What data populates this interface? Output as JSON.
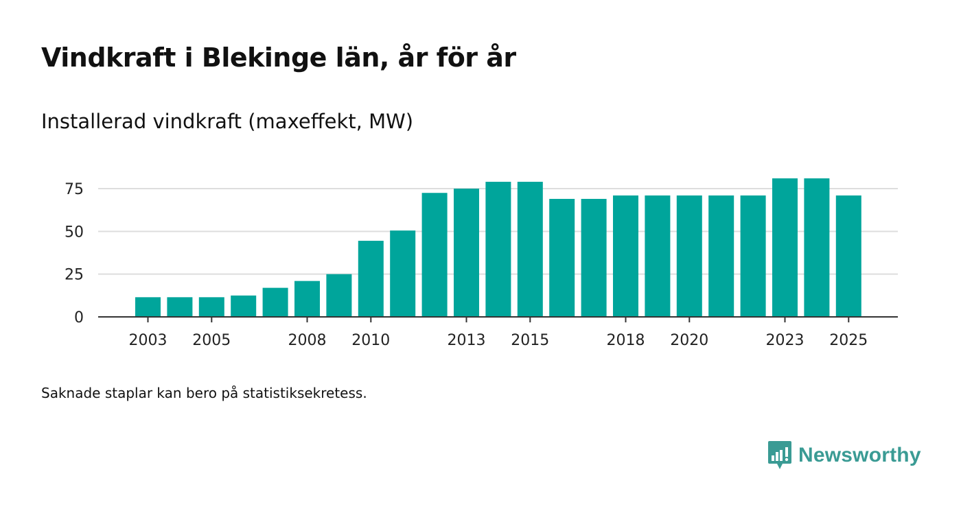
{
  "header": {
    "title": "Vindkraft i Blekinge län, år för år",
    "subtitle": "Installerad vindkraft (maxeffekt, MW)"
  },
  "footer": {
    "note": "Saknade staplar kan bero på statistiksekretess.",
    "brand": "Newsworthy"
  },
  "colors": {
    "bar": "#00a59b",
    "grid": "#dddddd",
    "axis": "#333333",
    "brand": "#3a9b94"
  },
  "chart_data": {
    "type": "bar",
    "title": "Installerad vindkraft (maxeffekt, MW)",
    "xlabel": "",
    "ylabel": "",
    "categories": [
      "2003",
      "2004",
      "2005",
      "2006",
      "2007",
      "2008",
      "2009",
      "2010",
      "2011",
      "2012",
      "2013",
      "2014",
      "2015",
      "2016",
      "2017",
      "2018",
      "2019",
      "2020",
      "2021",
      "2022",
      "2023",
      "2024",
      "2025"
    ],
    "values": [
      11.5,
      11.5,
      11.5,
      12.5,
      17,
      21,
      25,
      44.5,
      50.5,
      72.5,
      75,
      79,
      79,
      69,
      69,
      71,
      71,
      71,
      71,
      71,
      81,
      81,
      71
    ],
    "x_tick_labels": [
      "2003",
      "2005",
      "2008",
      "2010",
      "2013",
      "2015",
      "2018",
      "2020",
      "2023",
      "2025"
    ],
    "y_ticks": [
      0,
      25,
      50,
      75
    ],
    "ylim": [
      0,
      90
    ],
    "grid": true,
    "legend": "none"
  }
}
